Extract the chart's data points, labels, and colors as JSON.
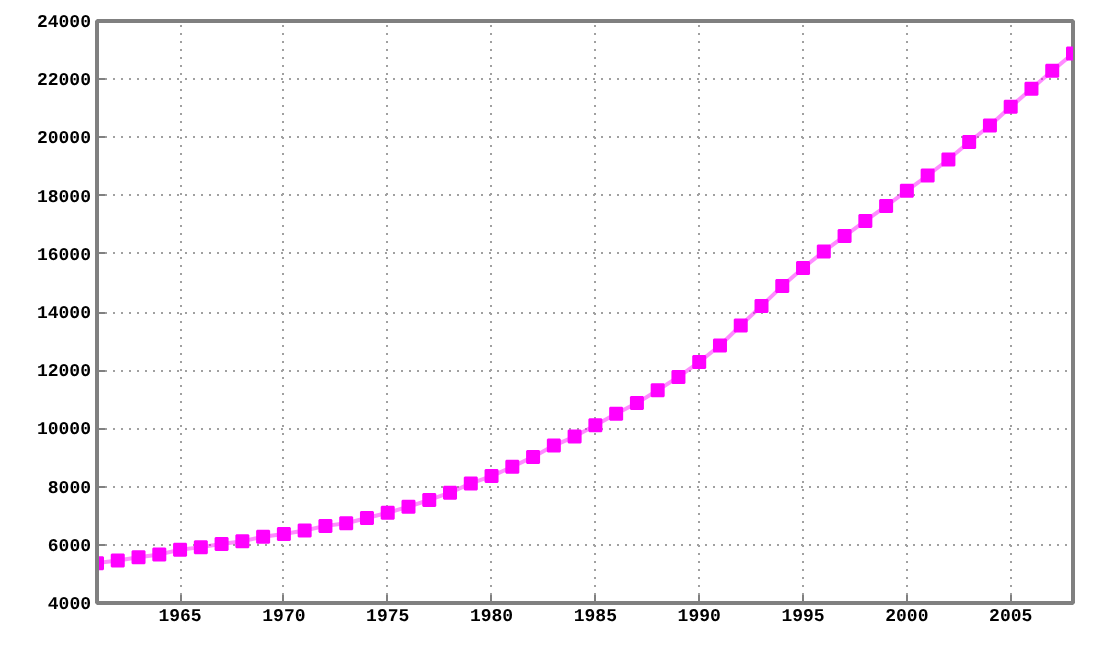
{
  "chart_data": {
    "type": "line",
    "x": [
      1961,
      1962,
      1963,
      1964,
      1965,
      1966,
      1967,
      1968,
      1969,
      1970,
      1971,
      1972,
      1973,
      1974,
      1975,
      1976,
      1977,
      1978,
      1979,
      1980,
      1981,
      1982,
      1983,
      1984,
      1985,
      1986,
      1987,
      1988,
      1989,
      1990,
      1991,
      1992,
      1993,
      1994,
      1995,
      1996,
      1997,
      1998,
      1999,
      2000,
      2001,
      2002,
      2003,
      2004,
      2005,
      2006,
      2007,
      2008
    ],
    "series": [
      {
        "color": "#ff00ff",
        "values": [
          5370,
          5460,
          5575,
          5670,
          5830,
          5920,
          6030,
          6120,
          6280,
          6370,
          6490,
          6650,
          6740,
          6920,
          7100,
          7310,
          7540,
          7790,
          8110,
          8360,
          8680,
          9020,
          9410,
          9720,
          10110,
          10500,
          10870,
          11310,
          11770,
          12280,
          12850,
          13540,
          14210,
          14890,
          15510,
          16080,
          16610,
          17130,
          17640,
          18170,
          18690,
          19240,
          19840,
          20410,
          21050,
          21670,
          22290,
          22880
        ]
      }
    ],
    "xlim": [
      1961,
      2008
    ],
    "xticks": [
      1965,
      1970,
      1975,
      1980,
      1985,
      1990,
      1995,
      2000,
      2005
    ],
    "ylim": [
      4000,
      24000
    ],
    "yticks": [
      4000,
      6000,
      8000,
      10000,
      12000,
      14000,
      16000,
      18000,
      20000,
      22000,
      24000
    ],
    "grid": true,
    "marker": "square",
    "line_style": "solid"
  }
}
